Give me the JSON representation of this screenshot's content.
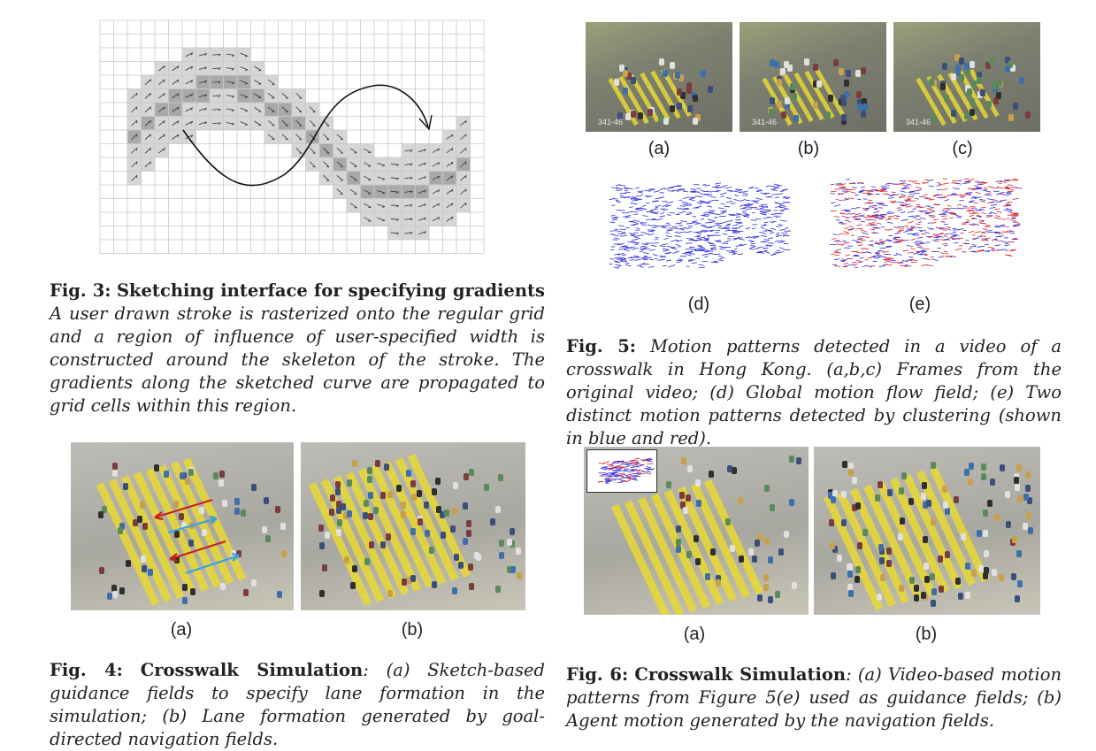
{
  "fig3": {
    "label": "Fig. 3:",
    "title": "Sketching interface for specifying gradients",
    "text": "A user drawn stroke is rasterized onto the regular grid and a region of influence of user-specified width is constructed around the skeleton of the stroke. The gradients along the sketched curve are propagated to grid cells within this region."
  },
  "fig4": {
    "label": "Fig. 4:",
    "title": "Crosswalk Simulation",
    "text": ": (a) Sketch-based guidance fields to specify lane formation in the simulation; (b) Lane formation generated by goal-directed navigation fields.",
    "sub_a": "(a)",
    "sub_b": "(b)"
  },
  "fig5": {
    "label": "Fig. 5:",
    "text": "Motion patterns detected in a video of a crosswalk in Hong Kong. (a,b,c) Frames from the original video; (d) Global motion flow field; (e) Two distinct motion patterns detected by clustering (shown in blue and red).",
    "sub_a": "(a)",
    "sub_b": "(b)",
    "sub_c": "(c)",
    "sub_d": "(d)",
    "sub_e": "(e)",
    "timecode": "341-46"
  },
  "fig6": {
    "label": "Fig. 6:",
    "title": "Crosswalk Simulation",
    "text": ": (a) Video-based motion patterns from Figure 5(e) used as guidance fields; (b) Agent motion generated by the navigation fields.",
    "sub_a": "(a)",
    "sub_b": "(b)"
  },
  "colors": {
    "grid_line": "#c8c8c8",
    "region_light": "#d6d6d6",
    "region_dark": "#a9a9a9",
    "flow_blue": "#2a2ae0",
    "flow_red": "#e02020",
    "stripe_yellow": "#e8d832"
  }
}
